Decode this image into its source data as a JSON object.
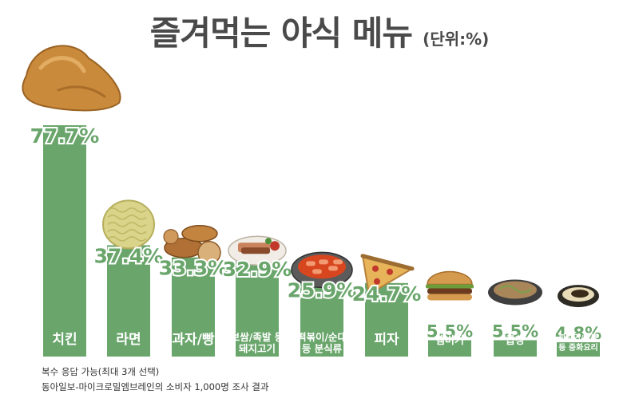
{
  "title": "즐겨먹는 야식 메뉴",
  "unit": "(단위:%)",
  "notes": [
    "복수 응답 가능(최대 3개 선택)",
    "동아일보-마이크로밀엠브레인의 소비자 1,000명 조사 결과"
  ],
  "colors": {
    "bar": "#6aa66c",
    "label": "#6aa66c",
    "title": "#4a4a4a"
  },
  "chart_data": {
    "type": "bar",
    "title": "즐겨먹는 야식 메뉴",
    "xlabel": "",
    "ylabel": "",
    "ylim": [
      0,
      80
    ],
    "grid": false,
    "legend": "none",
    "categories": [
      [
        "치킨"
      ],
      [
        "라면"
      ],
      [
        "과자/빵"
      ],
      [
        "보쌈/족발 등",
        "돼지고기"
      ],
      [
        "떡볶이/순대",
        "등 분식류"
      ],
      [
        "피자"
      ],
      [
        "햄버거"
      ],
      [
        "곱창"
      ],
      [
        "짜장면/짬뽕",
        "등 중화요리"
      ]
    ],
    "values": [
      77.7,
      37.4,
      33.3,
      32.9,
      25.9,
      24.7,
      5.5,
      5.5,
      4.8
    ],
    "value_labels": [
      "77.7%",
      "37.4%",
      "33.3%",
      "32.9%",
      "25.9%",
      "24.7%",
      "5.5%",
      "5.5%",
      "4.8%"
    ],
    "icons": [
      "fried-chicken-icon",
      "ramen-noodle-icon",
      "snack-bread-icon",
      "pork-dish-icon",
      "tteokbokki-icon",
      "pizza-icon",
      "hamburger-icon",
      "gopchang-icon",
      "jjajangmyeon-icon"
    ]
  }
}
